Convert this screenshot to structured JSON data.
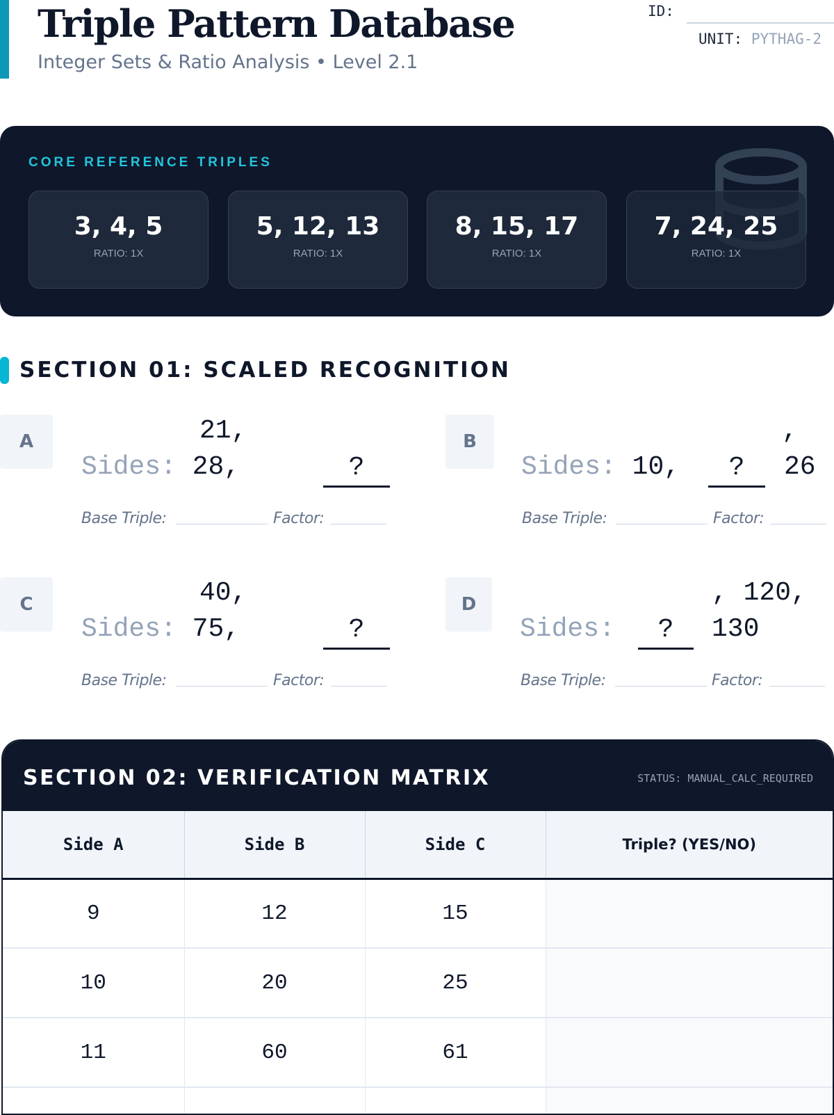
{
  "header": {
    "title": "Triple Pattern Database",
    "subtitle": "Integer Sets & Ratio Analysis • Level 2.1",
    "id_label": "ID:",
    "unit_label": "UNIT:",
    "unit_value": "PYTHAG-2"
  },
  "reference": {
    "label": "CORE REFERENCE TRIPLES",
    "icon": "database-icon",
    "triples": [
      {
        "triple": "3, 4, 5",
        "ratio": "RATIO: 1X"
      },
      {
        "triple": "5, 12, 13",
        "ratio": "RATIO: 1X"
      },
      {
        "triple": "8, 15, 17",
        "ratio": "RATIO: 1X"
      },
      {
        "triple": "7, 24, 25",
        "ratio": "RATIO: 1X"
      }
    ]
  },
  "section1": {
    "title": "SECTION 01: SCALED RECOGNITION",
    "sides_label": "Sides:",
    "base_label": "Base Triple:",
    "factor_label": "Factor:",
    "problems": [
      {
        "letter": "A",
        "top": "21,",
        "v1": "28,",
        "blank": "?"
      },
      {
        "letter": "B",
        "top": ",",
        "v1": "10,",
        "blank": "?",
        "v2": "26"
      },
      {
        "letter": "C",
        "top": "40,",
        "v1": "75,",
        "blank": "?"
      },
      {
        "letter": "D",
        "top": ", 120,",
        "blank": "?",
        "v2": "130"
      }
    ]
  },
  "section2": {
    "title": "SECTION 02: VERIFICATION MATRIX",
    "status": "STATUS: MANUAL_CALC_REQUIRED",
    "columns": [
      "Side A",
      "Side B",
      "Side C",
      "Triple? (YES/NO)"
    ],
    "rows": [
      [
        "9",
        "12",
        "15",
        ""
      ],
      [
        "10",
        "20",
        "25",
        ""
      ],
      [
        "11",
        "60",
        "61",
        ""
      ],
      [
        "",
        "",
        "",
        ""
      ]
    ]
  },
  "colors": {
    "accent": "#0e98b8",
    "dark": "#0f172a",
    "cyan": "#22c5dc"
  }
}
